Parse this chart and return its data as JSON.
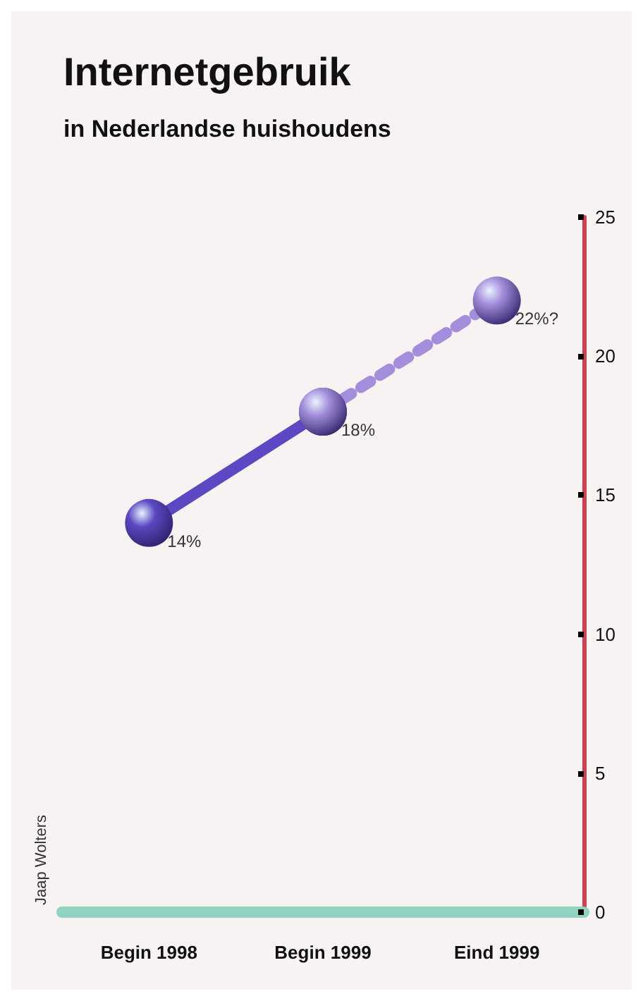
{
  "chart_data": {
    "type": "line",
    "title": "Internetgebruik",
    "subtitle": "in Nederlandse huishoudens",
    "categories": [
      "Begin 1998",
      "Begin 1999",
      "Eind 1999"
    ],
    "series": [
      {
        "color": "#5b48c2",
        "values": [
          14,
          18,
          null
        ],
        "value_labels": [
          "14%",
          "18%",
          null
        ],
        "line_style": "solid"
      },
      {
        "color": "#a48edb",
        "values": [
          null,
          18,
          22
        ],
        "value_labels": [
          null,
          null,
          "22%?"
        ],
        "line_style": "dotted"
      }
    ],
    "ylim": [
      0,
      25
    ],
    "yticks": [
      0,
      5,
      10,
      15,
      20,
      25
    ],
    "grid": false,
    "marker": "circle",
    "annotations": [
      "Jaap Wolters"
    ]
  }
}
